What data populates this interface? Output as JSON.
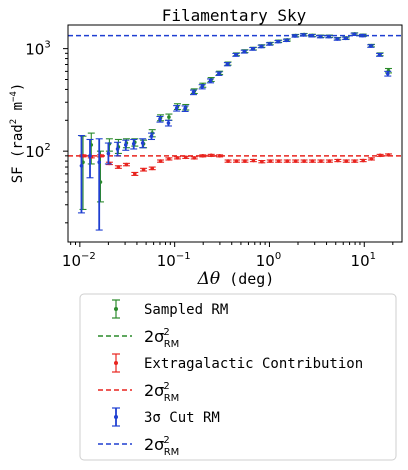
{
  "chart_data": {
    "type": "scatter",
    "title": "Filamentary Sky",
    "xlabel": {
      "symbol": "Δθ",
      "unit": "(deg)"
    },
    "ylabel": {
      "main": "SF (rad",
      "sup1": "2",
      "mid": " m",
      "sup2": "−4",
      "end": ")"
    },
    "x_scale": "log",
    "y_scale": "log",
    "xlim": [
      0.0075,
      25
    ],
    "ylim": [
      13,
      1700
    ],
    "grid": false,
    "legend_position": "below",
    "x_ticks": [
      {
        "value": 0.01,
        "base": "10",
        "exp": "−2"
      },
      {
        "value": 0.1,
        "base": "10",
        "exp": "−1"
      },
      {
        "value": 1,
        "base": "10",
        "exp": "0"
      },
      {
        "value": 10,
        "base": "10",
        "exp": "1"
      }
    ],
    "y_ticks": [
      {
        "value": 100,
        "base": "10",
        "exp": "2"
      },
      {
        "value": 1000,
        "base": "10",
        "exp": "3"
      }
    ],
    "hlines": [
      {
        "y": 1340,
        "color": "#1f3fd1",
        "style": "dashed"
      },
      {
        "y": 90,
        "color": "#e8241f",
        "style": "dashed"
      }
    ],
    "series": [
      {
        "name": "Sampled RM",
        "color": "#2a8a2a",
        "points": [
          {
            "x": 0.0108,
            "y": 78,
            "lo": 27,
            "hi": 140
          },
          {
            "x": 0.0132,
            "y": 115,
            "lo": 75,
            "hi": 150
          },
          {
            "x": 0.0165,
            "y": 50,
            "lo": 32,
            "hi": 100
          },
          {
            "x": 0.0205,
            "y": 118,
            "lo": 100,
            "hi": 132
          },
          {
            "x": 0.0255,
            "y": 110,
            "lo": 95,
            "hi": 130
          },
          {
            "x": 0.031,
            "y": 120,
            "lo": 108,
            "hi": 132
          },
          {
            "x": 0.038,
            "y": 122,
            "lo": 112,
            "hi": 132
          },
          {
            "x": 0.047,
            "y": 118,
            "lo": 108,
            "hi": 128
          },
          {
            "x": 0.058,
            "y": 150,
            "lo": 138,
            "hi": 162
          },
          {
            "x": 0.071,
            "y": 212,
            "lo": 198,
            "hi": 226
          },
          {
            "x": 0.087,
            "y": 215,
            "lo": 200,
            "hi": 230
          },
          {
            "x": 0.107,
            "y": 272,
            "lo": 255,
            "hi": 290
          },
          {
            "x": 0.131,
            "y": 268,
            "lo": 252,
            "hi": 285
          },
          {
            "x": 0.161,
            "y": 385,
            "lo": 365,
            "hi": 405
          },
          {
            "x": 0.198,
            "y": 440,
            "lo": 420,
            "hi": 460
          },
          {
            "x": 0.243,
            "y": 500,
            "lo": 478,
            "hi": 522
          },
          {
            "x": 0.298,
            "y": 580,
            "lo": 558,
            "hi": 602
          },
          {
            "x": 0.366,
            "y": 715,
            "lo": 690,
            "hi": 740
          },
          {
            "x": 0.449,
            "y": 880,
            "lo": 852,
            "hi": 908
          },
          {
            "x": 0.551,
            "y": 945,
            "lo": 915,
            "hi": 975
          },
          {
            "x": 0.677,
            "y": 1000,
            "lo": 970,
            "hi": 1030
          },
          {
            "x": 0.831,
            "y": 1060,
            "lo": 1030,
            "hi": 1090
          },
          {
            "x": 1.02,
            "y": 1120,
            "lo": 1090,
            "hi": 1150
          },
          {
            "x": 1.25,
            "y": 1180,
            "lo": 1150,
            "hi": 1210
          },
          {
            "x": 1.54,
            "y": 1215,
            "lo": 1185,
            "hi": 1245
          },
          {
            "x": 1.89,
            "y": 1340,
            "lo": 1305,
            "hi": 1375
          },
          {
            "x": 2.32,
            "y": 1370,
            "lo": 1335,
            "hi": 1405
          },
          {
            "x": 2.84,
            "y": 1345,
            "lo": 1310,
            "hi": 1380
          },
          {
            "x": 3.49,
            "y": 1320,
            "lo": 1285,
            "hi": 1355
          },
          {
            "x": 4.29,
            "y": 1320,
            "lo": 1285,
            "hi": 1355
          },
          {
            "x": 5.26,
            "y": 1250,
            "lo": 1218,
            "hi": 1282
          },
          {
            "x": 6.46,
            "y": 1270,
            "lo": 1238,
            "hi": 1302
          },
          {
            "x": 7.93,
            "y": 1390,
            "lo": 1355,
            "hi": 1425
          },
          {
            "x": 9.74,
            "y": 1350,
            "lo": 1315,
            "hi": 1385
          },
          {
            "x": 11.9,
            "y": 1070,
            "lo": 1040,
            "hi": 1100
          },
          {
            "x": 14.7,
            "y": 880,
            "lo": 852,
            "hi": 908
          },
          {
            "x": 18.0,
            "y": 610,
            "lo": 580,
            "hi": 640
          }
        ]
      },
      {
        "name": "Extragalactic Contribution",
        "color": "#e8241f",
        "points": [
          {
            "x": 0.0108,
            "y": 90,
            "lo": 88,
            "hi": 92
          },
          {
            "x": 0.0132,
            "y": 88,
            "lo": 86,
            "hi": 90
          },
          {
            "x": 0.0165,
            "y": 90,
            "lo": 88,
            "hi": 92
          },
          {
            "x": 0.0205,
            "y": 76,
            "lo": 74,
            "hi": 78
          },
          {
            "x": 0.0255,
            "y": 70,
            "lo": 68,
            "hi": 72
          },
          {
            "x": 0.031,
            "y": 74,
            "lo": 72,
            "hi": 76
          },
          {
            "x": 0.038,
            "y": 60,
            "lo": 58,
            "hi": 62
          },
          {
            "x": 0.047,
            "y": 66,
            "lo": 64,
            "hi": 68
          },
          {
            "x": 0.058,
            "y": 68,
            "lo": 66,
            "hi": 70
          },
          {
            "x": 0.071,
            "y": 80,
            "lo": 78,
            "hi": 82
          },
          {
            "x": 0.087,
            "y": 84,
            "lo": 82,
            "hi": 86
          },
          {
            "x": 0.107,
            "y": 86,
            "lo": 84,
            "hi": 88
          },
          {
            "x": 0.131,
            "y": 87,
            "lo": 85,
            "hi": 89
          },
          {
            "x": 0.161,
            "y": 86,
            "lo": 84,
            "hi": 88
          },
          {
            "x": 0.198,
            "y": 90,
            "lo": 88,
            "hi": 92
          },
          {
            "x": 0.243,
            "y": 91,
            "lo": 89,
            "hi": 93
          },
          {
            "x": 0.298,
            "y": 90,
            "lo": 88,
            "hi": 92
          },
          {
            "x": 0.366,
            "y": 80,
            "lo": 78,
            "hi": 82
          },
          {
            "x": 0.449,
            "y": 80,
            "lo": 78,
            "hi": 82
          },
          {
            "x": 0.551,
            "y": 80,
            "lo": 78,
            "hi": 82
          },
          {
            "x": 0.677,
            "y": 81,
            "lo": 79,
            "hi": 83
          },
          {
            "x": 0.831,
            "y": 79,
            "lo": 77,
            "hi": 81
          },
          {
            "x": 1.02,
            "y": 80,
            "lo": 78,
            "hi": 82
          },
          {
            "x": 1.25,
            "y": 80,
            "lo": 78,
            "hi": 82
          },
          {
            "x": 1.54,
            "y": 80,
            "lo": 78,
            "hi": 82
          },
          {
            "x": 1.89,
            "y": 80,
            "lo": 78,
            "hi": 82
          },
          {
            "x": 2.32,
            "y": 80,
            "lo": 78,
            "hi": 82
          },
          {
            "x": 2.84,
            "y": 80,
            "lo": 78,
            "hi": 82
          },
          {
            "x": 3.49,
            "y": 80,
            "lo": 78,
            "hi": 82
          },
          {
            "x": 4.29,
            "y": 80,
            "lo": 78,
            "hi": 82
          },
          {
            "x": 5.26,
            "y": 81,
            "lo": 79,
            "hi": 83
          },
          {
            "x": 6.46,
            "y": 80,
            "lo": 78,
            "hi": 82
          },
          {
            "x": 7.93,
            "y": 80,
            "lo": 78,
            "hi": 82
          },
          {
            "x": 9.74,
            "y": 81,
            "lo": 79,
            "hi": 83
          },
          {
            "x": 11.9,
            "y": 84,
            "lo": 82,
            "hi": 86
          },
          {
            "x": 14.7,
            "y": 91,
            "lo": 89,
            "hi": 93
          },
          {
            "x": 18.0,
            "y": 92,
            "lo": 90,
            "hi": 94
          }
        ]
      },
      {
        "name": "3σ Cut RM",
        "color": "#1f3fd1",
        "points": [
          {
            "x": 0.0104,
            "y": 72,
            "lo": 25,
            "hi": 142
          },
          {
            "x": 0.0128,
            "y": 90,
            "lo": 55,
            "hi": 130
          },
          {
            "x": 0.016,
            "y": 78,
            "lo": 17,
            "hi": 132
          },
          {
            "x": 0.02,
            "y": 95,
            "lo": 75,
            "hi": 120
          },
          {
            "x": 0.025,
            "y": 105,
            "lo": 90,
            "hi": 122
          },
          {
            "x": 0.0305,
            "y": 115,
            "lo": 102,
            "hi": 128
          },
          {
            "x": 0.037,
            "y": 118,
            "lo": 105,
            "hi": 130
          },
          {
            "x": 0.046,
            "y": 120,
            "lo": 108,
            "hi": 132
          },
          {
            "x": 0.057,
            "y": 140,
            "lo": 130,
            "hi": 150
          },
          {
            "x": 0.07,
            "y": 205,
            "lo": 192,
            "hi": 218
          },
          {
            "x": 0.086,
            "y": 188,
            "lo": 176,
            "hi": 200
          },
          {
            "x": 0.105,
            "y": 262,
            "lo": 246,
            "hi": 278
          },
          {
            "x": 0.129,
            "y": 260,
            "lo": 244,
            "hi": 276
          },
          {
            "x": 0.158,
            "y": 375,
            "lo": 356,
            "hi": 394
          },
          {
            "x": 0.195,
            "y": 425,
            "lo": 405,
            "hi": 445
          },
          {
            "x": 0.239,
            "y": 485,
            "lo": 464,
            "hi": 506
          },
          {
            "x": 0.293,
            "y": 570,
            "lo": 548,
            "hi": 592
          },
          {
            "x": 0.36,
            "y": 705,
            "lo": 680,
            "hi": 730
          },
          {
            "x": 0.442,
            "y": 870,
            "lo": 842,
            "hi": 898
          },
          {
            "x": 0.542,
            "y": 935,
            "lo": 905,
            "hi": 965
          },
          {
            "x": 0.666,
            "y": 995,
            "lo": 965,
            "hi": 1025
          },
          {
            "x": 0.818,
            "y": 1050,
            "lo": 1020,
            "hi": 1080
          },
          {
            "x": 1.0,
            "y": 1110,
            "lo": 1080,
            "hi": 1140
          },
          {
            "x": 1.23,
            "y": 1170,
            "lo": 1140,
            "hi": 1200
          },
          {
            "x": 1.51,
            "y": 1205,
            "lo": 1175,
            "hi": 1235
          },
          {
            "x": 1.86,
            "y": 1330,
            "lo": 1295,
            "hi": 1365
          },
          {
            "x": 2.28,
            "y": 1360,
            "lo": 1325,
            "hi": 1395
          },
          {
            "x": 2.8,
            "y": 1335,
            "lo": 1300,
            "hi": 1370
          },
          {
            "x": 3.44,
            "y": 1310,
            "lo": 1275,
            "hi": 1345
          },
          {
            "x": 4.22,
            "y": 1310,
            "lo": 1275,
            "hi": 1345
          },
          {
            "x": 5.18,
            "y": 1240,
            "lo": 1208,
            "hi": 1272
          },
          {
            "x": 6.36,
            "y": 1260,
            "lo": 1228,
            "hi": 1292
          },
          {
            "x": 7.81,
            "y": 1380,
            "lo": 1345,
            "hi": 1415
          },
          {
            "x": 9.59,
            "y": 1340,
            "lo": 1305,
            "hi": 1375
          },
          {
            "x": 11.7,
            "y": 1060,
            "lo": 1030,
            "hi": 1090
          },
          {
            "x": 14.5,
            "y": 870,
            "lo": 842,
            "hi": 898
          },
          {
            "x": 17.7,
            "y": 570,
            "lo": 540,
            "hi": 600
          }
        ]
      }
    ]
  },
  "legend": {
    "entries": [
      {
        "kind": "errorbar",
        "color": "#2a8a2a",
        "label": "Sampled RM"
      },
      {
        "kind": "line",
        "color": "#2a8a2a",
        "label_main": "2σ",
        "label_sup": "2",
        "label_sub": "RM"
      },
      {
        "kind": "errorbar",
        "color": "#e8241f",
        "label": "Extragalactic Contribution"
      },
      {
        "kind": "line",
        "color": "#e8241f",
        "label_main": "2σ",
        "label_sup": "2",
        "label_sub": "RM"
      },
      {
        "kind": "errorbar",
        "color": "#1f3fd1",
        "label": "3σ Cut RM"
      },
      {
        "kind": "line",
        "color": "#1f3fd1",
        "label_main": "2σ",
        "label_sup": "2",
        "label_sub": "RM"
      }
    ]
  }
}
